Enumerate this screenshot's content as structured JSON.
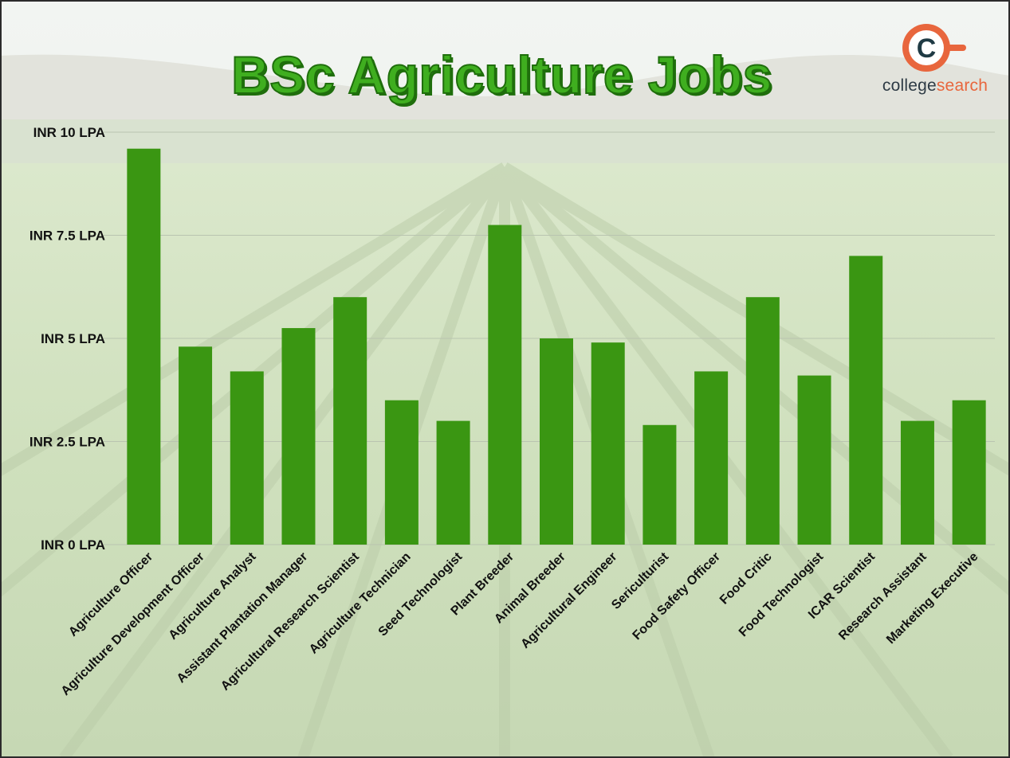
{
  "title": "BSc Agriculture Jobs",
  "brand": {
    "icon_letter": "C",
    "name_part1": "college",
    "name_part2": "search",
    "accent": "#e8663d",
    "dark": "#1f3a44"
  },
  "colors": {
    "bar": "#3a9612",
    "title": "#3fae1f",
    "title_outline": "#1f6e0c",
    "gridline": "#b9c4b0",
    "label": "#111111"
  },
  "chart_data": {
    "type": "bar",
    "title": "BSc Agriculture Jobs",
    "xlabel": "",
    "ylabel": "",
    "ylim": [
      0,
      10
    ],
    "yticks": [
      {
        "value": 0,
        "label": "INR 0 LPA"
      },
      {
        "value": 2.5,
        "label": "INR 2.5 LPA"
      },
      {
        "value": 5,
        "label": "INR 5 LPA"
      },
      {
        "value": 7.5,
        "label": "INR 7.5 LPA"
      },
      {
        "value": 10,
        "label": "INR 10 LPA"
      }
    ],
    "grid": true,
    "categories": [
      "Agriculture Officer",
      "Agriculture Development Officer",
      "Agriculture Analyst",
      "Assistant Plantation Manager",
      "Agricultural Research Scientist",
      "Agriculture Technician",
      "Seed Technologist",
      "Plant Breeder",
      "Animal Breeder",
      "Agricultural Engineer",
      "Sericulturist",
      "Food Safety Officer",
      "Food Critic",
      "Food Technologist",
      "ICAR Scientist",
      "Research Assistant",
      "Marketing Executive"
    ],
    "values": [
      9.6,
      4.8,
      4.2,
      5.25,
      6.0,
      3.5,
      3.0,
      7.75,
      5.0,
      4.9,
      2.9,
      4.2,
      6.0,
      4.1,
      7.0,
      3.0,
      3.5
    ]
  }
}
